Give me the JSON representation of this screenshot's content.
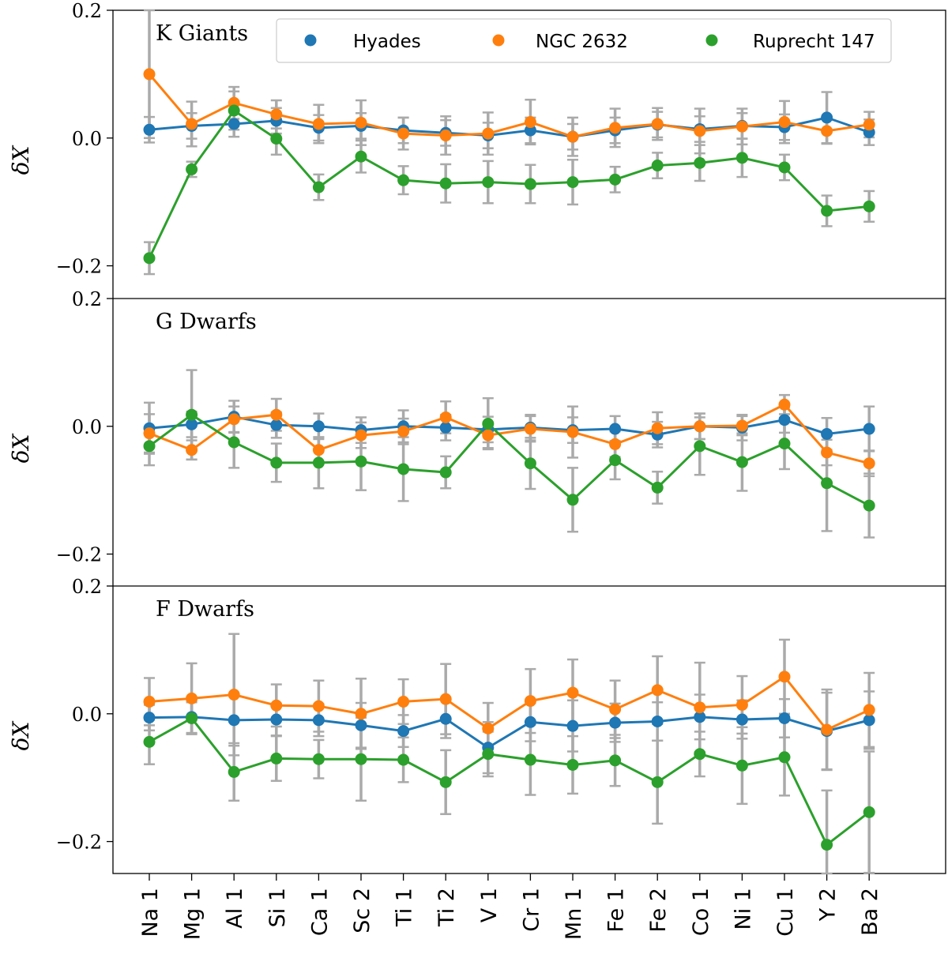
{
  "chart_data": {
    "type": "scatter",
    "categories": [
      "Na 1",
      "Mg 1",
      "Al 1",
      "Si 1",
      "Ca 1",
      "Sc 2",
      "Ti 1",
      "Ti 2",
      "V 1",
      "Cr 1",
      "Mn 1",
      "Fe 1",
      "Fe 2",
      "Co 1",
      "Ni 1",
      "Cu 1",
      "Y 2",
      "Ba 2"
    ],
    "ylabel": "δX",
    "ylim": [
      -0.25,
      0.2
    ],
    "yticks": [
      "0.2",
      "0.0",
      "−0.2"
    ],
    "colors": {
      "Hyades": "#1f77b4",
      "NGC 2632": "#ff7f0e",
      "Ruprecht 147": "#2ca02c",
      "errorbar": "#aaaaaa"
    },
    "legend": {
      "placement": "top-right",
      "entries": [
        "Hyades",
        "NGC 2632",
        "Ruprecht 147"
      ]
    },
    "grid": false,
    "panels": [
      {
        "title": "K Giants",
        "series": [
          {
            "name": "Hyades",
            "values": [
              0.013,
              0.019,
              0.022,
              0.027,
              0.016,
              0.019,
              0.012,
              0.008,
              0.004,
              0.012,
              0.002,
              0.012,
              0.021,
              0.014,
              0.019,
              0.017,
              0.032,
              0.009
            ],
            "errors": [
              0.02,
              0.02,
              0.02,
              0.02,
              0.02,
              0.02,
              0.02,
              0.02,
              0.02,
              0.02,
              0.02,
              0.02,
              0.02,
              0.02,
              0.02,
              0.02,
              0.04,
              0.02
            ]
          },
          {
            "name": "NGC 2632",
            "values": [
              0.1,
              0.022,
              0.055,
              0.037,
              0.022,
              0.024,
              0.007,
              0.004,
              0.007,
              0.025,
              0.002,
              0.016,
              0.022,
              0.011,
              0.018,
              0.025,
              0.011,
              0.021
            ],
            "errors": [
              0.1,
              0.035,
              0.025,
              0.022,
              0.03,
              0.035,
              0.025,
              0.03,
              0.033,
              0.035,
              0.03,
              0.03,
              0.025,
              0.035,
              0.028,
              0.033,
              0.02,
              0.02
            ]
          },
          {
            "name": "Ruprecht 147",
            "values": [
              -0.188,
              -0.049,
              0.043,
              -0.001,
              -0.077,
              -0.029,
              -0.066,
              -0.071,
              -0.069,
              -0.072,
              -0.069,
              -0.065,
              -0.043,
              -0.039,
              -0.031,
              -0.046,
              -0.114,
              -0.107
            ],
            "errors": [
              0.025,
              0.012,
              0.03,
              0.025,
              0.02,
              0.025,
              0.022,
              0.03,
              0.033,
              0.03,
              0.035,
              0.02,
              0.02,
              0.028,
              0.03,
              0.02,
              0.024,
              0.024
            ]
          }
        ]
      },
      {
        "title": "G Dwarfs",
        "series": [
          {
            "name": "Hyades",
            "values": [
              -0.003,
              0.003,
              0.015,
              0.002,
              0.0,
              -0.006,
              0.0,
              -0.002,
              -0.005,
              -0.002,
              -0.006,
              -0.004,
              -0.013,
              0.0,
              -0.002,
              0.01,
              -0.012,
              -0.004
            ],
            "errors": [
              0.04,
              0.02,
              0.025,
              0.02,
              0.02,
              0.02,
              0.025,
              0.02,
              0.02,
              0.02,
              0.02,
              0.02,
              0.02,
              0.02,
              0.02,
              0.02,
              0.025,
              0.035
            ]
          },
          {
            "name": "NGC 2632",
            "values": [
              -0.011,
              -0.037,
              0.011,
              0.018,
              -0.037,
              -0.014,
              -0.008,
              0.014,
              -0.014,
              -0.004,
              -0.009,
              -0.028,
              -0.003,
              0.0,
              0.001,
              0.034,
              -0.041,
              -0.058
            ],
            "errors": [
              0.03,
              0.015,
              0.02,
              0.025,
              0.02,
              0.02,
              0.02,
              0.025,
              0.02,
              0.02,
              0.04,
              0.02,
              0.025,
              0.02,
              0.015,
              0.015,
              0.02,
              0.02
            ]
          },
          {
            "name": "Ruprecht 147",
            "values": [
              -0.031,
              0.018,
              -0.025,
              -0.057,
              -0.057,
              -0.055,
              -0.067,
              -0.072,
              0.004,
              -0.058,
              -0.115,
              -0.053,
              -0.096,
              -0.031,
              -0.056,
              -0.027,
              -0.089,
              -0.124
            ],
            "errors": [
              0.03,
              0.07,
              0.04,
              0.03,
              0.04,
              0.045,
              0.05,
              0.025,
              0.04,
              0.04,
              0.05,
              0.03,
              0.025,
              0.045,
              0.045,
              0.04,
              0.075,
              0.05
            ]
          }
        ]
      },
      {
        "title": "F Dwarfs",
        "series": [
          {
            "name": "Hyades",
            "values": [
              -0.006,
              -0.005,
              -0.01,
              -0.009,
              -0.01,
              -0.018,
              -0.027,
              -0.008,
              -0.053,
              -0.013,
              -0.019,
              -0.014,
              -0.012,
              -0.005,
              -0.009,
              -0.007,
              -0.027,
              -0.01
            ],
            "errors": [
              0.02,
              0.025,
              0.04,
              0.025,
              0.025,
              0.035,
              0.025,
              0.03,
              0.04,
              0.03,
              0.04,
              0.03,
              0.03,
              0.035,
              0.03,
              0.03,
              0.06,
              0.045
            ]
          },
          {
            "name": "NGC 2632",
            "values": [
              0.019,
              0.024,
              0.03,
              0.013,
              0.012,
              0.0,
              0.019,
              0.023,
              -0.023,
              0.02,
              0.033,
              0.007,
              0.037,
              0.01,
              0.014,
              0.058,
              -0.025,
              0.006
            ],
            "errors": [
              0.037,
              0.055,
              0.095,
              0.033,
              0.04,
              0.055,
              0.035,
              0.055,
              0.04,
              0.05,
              0.052,
              0.045,
              0.053,
              0.07,
              0.045,
              0.058,
              0.063,
              0.058
            ]
          },
          {
            "name": "Ruprecht 147",
            "values": [
              -0.044,
              -0.007,
              -0.091,
              -0.07,
              -0.071,
              -0.071,
              -0.072,
              -0.107,
              -0.063,
              -0.072,
              -0.08,
              -0.073,
              -0.107,
              -0.063,
              -0.081,
              -0.068,
              -0.205,
              -0.154
            ],
            "errors": [
              0.035,
              0.025,
              0.045,
              0.035,
              0.03,
              0.065,
              0.035,
              0.05,
              0.035,
              0.055,
              0.045,
              0.04,
              0.065,
              0.035,
              0.06,
              0.06,
              0.085,
              0.095
            ]
          }
        ]
      }
    ]
  }
}
